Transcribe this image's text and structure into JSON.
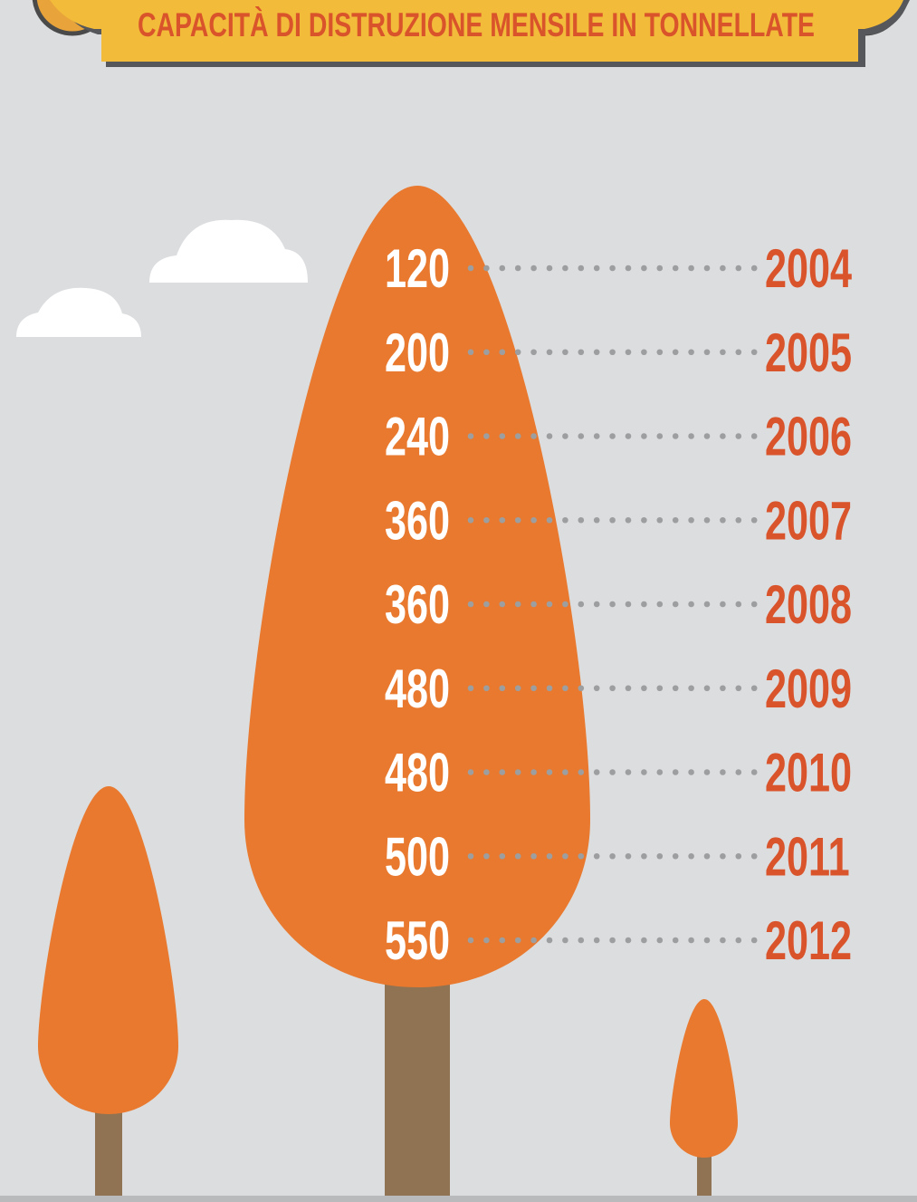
{
  "header": {
    "title": "CAPACITÀ DI DISTRUZIONE MENSILE IN TONNELLATE"
  },
  "rows": [
    {
      "value": "120",
      "year": "2004"
    },
    {
      "value": "200",
      "year": "2005"
    },
    {
      "value": "240",
      "year": "2006"
    },
    {
      "value": "360",
      "year": "2007"
    },
    {
      "value": "360",
      "year": "2008"
    },
    {
      "value": "480",
      "year": "2009"
    },
    {
      "value": "480",
      "year": "2010"
    },
    {
      "value": "500",
      "year": "2011"
    },
    {
      "value": "550",
      "year": "2012"
    }
  ]
}
